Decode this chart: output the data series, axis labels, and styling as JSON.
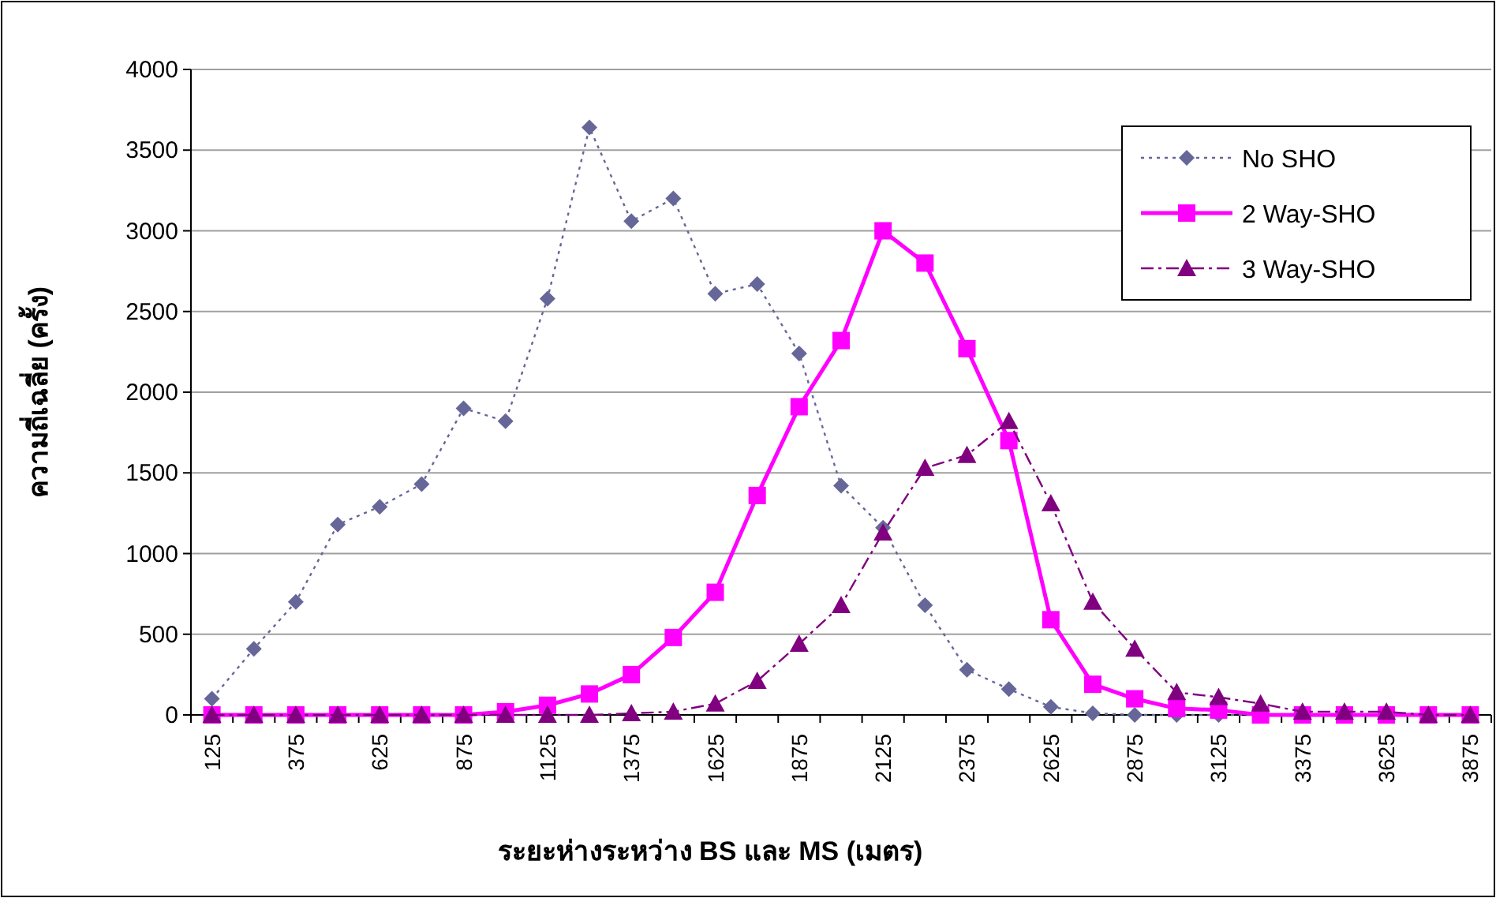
{
  "chart_data": {
    "type": "line",
    "xlabel": "ระยะห่างระหว่าง BS และ MS (เมตร)",
    "ylabel": "ความถี่เฉลี่ย (ครั้ง)",
    "categories": [
      "125",
      null,
      "375",
      null,
      "625",
      null,
      "875",
      null,
      "1125",
      null,
      "1375",
      null,
      "1625",
      null,
      "1875",
      null,
      "2125",
      null,
      "2375",
      null,
      "2625",
      null,
      "2875",
      null,
      "3125",
      null,
      "3375",
      null,
      "3625",
      null,
      "3875"
    ],
    "ylim": [
      0,
      4000
    ],
    "yticks": [
      0,
      500,
      1000,
      1500,
      2000,
      2500,
      3000,
      3500,
      4000
    ],
    "grid": "y",
    "legend": "top right",
    "series": [
      {
        "name": "No SHO",
        "color": "#666699",
        "marker": "diamond",
        "line_style": "dotted",
        "values": [
          100,
          410,
          700,
          1180,
          1290,
          1430,
          1900,
          1820,
          2580,
          3640,
          3060,
          3200,
          2610,
          2670,
          2240,
          1420,
          1160,
          680,
          280,
          160,
          50,
          10,
          0,
          0,
          0,
          0,
          0,
          0,
          0,
          0,
          0
        ]
      },
      {
        "name": "2 Way-SHO",
        "color": "#ff00ff",
        "marker": "square",
        "line_style": "solid",
        "values": [
          0,
          0,
          0,
          0,
          0,
          0,
          0,
          20,
          60,
          130,
          250,
          480,
          760,
          1360,
          1910,
          2320,
          3000,
          2800,
          2270,
          1700,
          590,
          190,
          100,
          40,
          30,
          0,
          0,
          0,
          0,
          0,
          0
        ]
      },
      {
        "name": "3 Way-SHO",
        "color": "#800080",
        "marker": "triangle",
        "line_style": "dashed",
        "values": [
          0,
          0,
          0,
          0,
          0,
          0,
          0,
          0,
          0,
          0,
          10,
          20,
          70,
          210,
          440,
          680,
          1130,
          1530,
          1610,
          1820,
          1310,
          700,
          410,
          140,
          110,
          70,
          20,
          20,
          20,
          0,
          0
        ]
      }
    ]
  }
}
